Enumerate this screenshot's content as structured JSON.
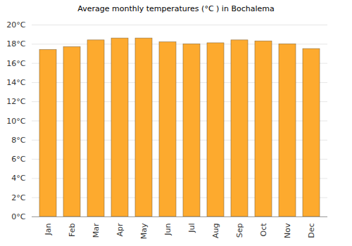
{
  "chart_data": {
    "type": "bar",
    "title": "Average monthly temperatures (°C ) in Bochalema",
    "categories": [
      "Jan",
      "Feb",
      "Mar",
      "Apr",
      "May",
      "Jun",
      "Jul",
      "Aug",
      "Sep",
      "Oct",
      "Nov",
      "Dec"
    ],
    "values": [
      17.4,
      17.7,
      18.4,
      18.6,
      18.6,
      18.2,
      18.0,
      18.1,
      18.4,
      18.3,
      18.0,
      17.5
    ],
    "color": "#fdaa2e",
    "ylim": [
      0,
      20
    ],
    "yticks": [
      {
        "value": 0,
        "label": "0°C"
      },
      {
        "value": 2,
        "label": "2°C"
      },
      {
        "value": 4,
        "label": "4°C"
      },
      {
        "value": 6,
        "label": "6°C"
      },
      {
        "value": 8,
        "label": "8°C"
      },
      {
        "value": 10,
        "label": "10°C"
      },
      {
        "value": 12,
        "label": "12°C"
      },
      {
        "value": 14,
        "label": "14°C"
      },
      {
        "value": 16,
        "label": "16°C"
      },
      {
        "value": 18,
        "label": "18°C"
      },
      {
        "value": 20,
        "label": "20°C"
      }
    ],
    "grid": true
  }
}
